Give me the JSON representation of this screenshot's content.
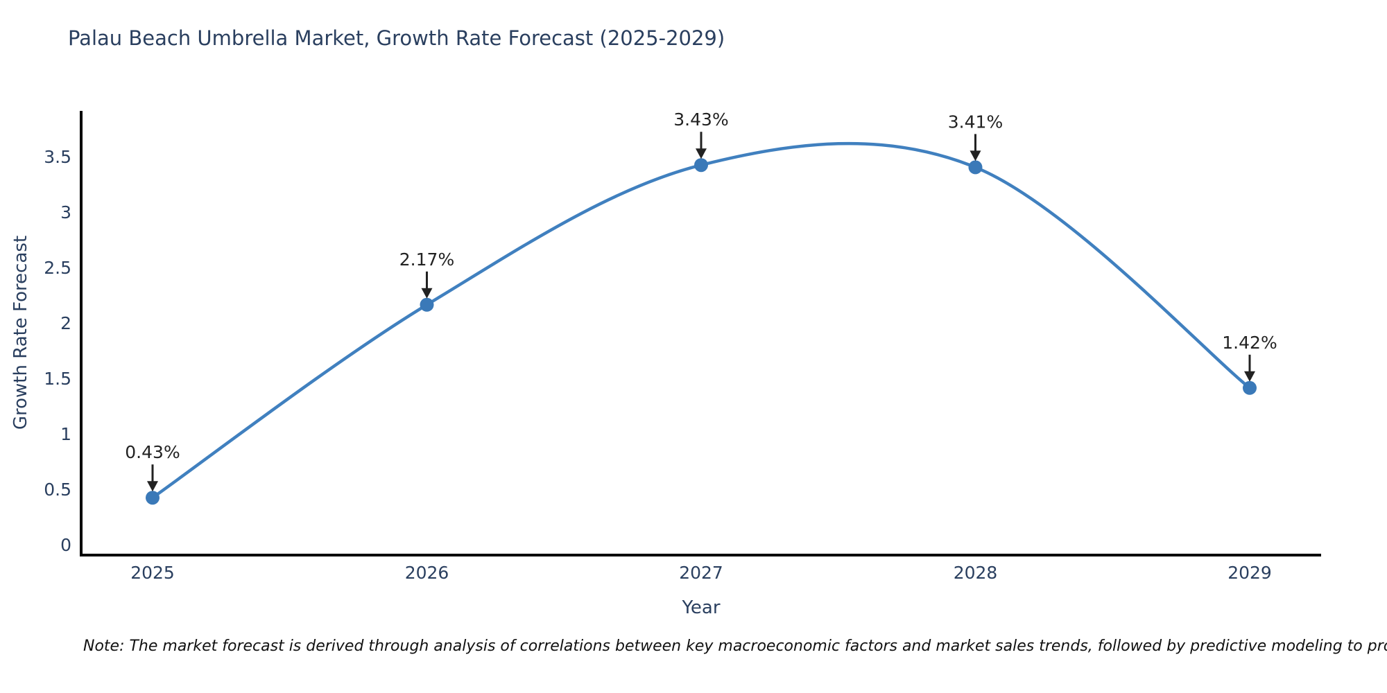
{
  "chart_data": {
    "type": "line",
    "title": "Palau Beach Umbrella Market, Growth Rate Forecast (2025-2029)",
    "xlabel": "Year",
    "ylabel": "Growth Rate Forecast",
    "categories": [
      "2025",
      "2026",
      "2027",
      "2028",
      "2029"
    ],
    "values": [
      0.43,
      2.17,
      3.43,
      3.41,
      1.42
    ],
    "point_labels": [
      "0.43%",
      "2.17%",
      "3.43%",
      "3.41%",
      "1.42%"
    ],
    "ytick_labels": [
      "0",
      "0.5",
      "1",
      "1.5",
      "2",
      "2.5",
      "3",
      "3.5"
    ],
    "ytick_values": [
      0,
      0.5,
      1,
      1.5,
      2,
      2.5,
      3,
      3.5
    ],
    "ylim": [
      0,
      3.7
    ],
    "line_shape": "spline",
    "grid": false,
    "legend": "none",
    "colors": {
      "line": "#4080bf",
      "marker": "#3a79b8",
      "title": "#2a3f5f",
      "tick": "#2a3f5f",
      "axis": "#000000",
      "annotation": "#222222"
    },
    "note": "Note: The market forecast is derived through analysis of correlations between key macroeconomic factors and market sales trends, followed by predictive modeling to project future sales"
  }
}
